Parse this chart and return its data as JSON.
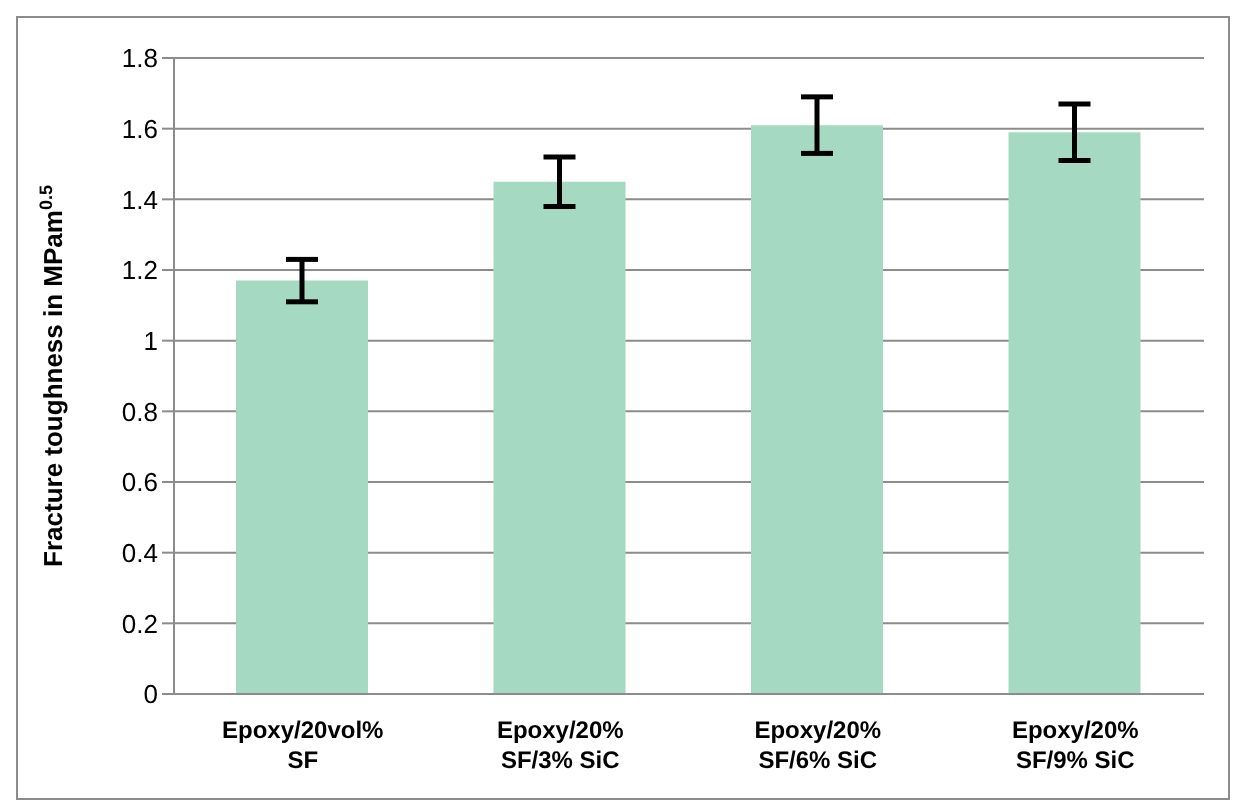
{
  "chart_data": {
    "type": "bar",
    "ylabel": "Fracture toughness in MPam$^{0.5}$",
    "categories": [
      "Epoxy/20vol% SF",
      "Epoxy/20% SF/3% SiC",
      "Epoxy/20% SF/6% SiC",
      "Epoxy/20% SF/9% SiC"
    ],
    "values": [
      1.17,
      1.45,
      1.61,
      1.59
    ],
    "errors": [
      0.06,
      0.07,
      0.08,
      0.08
    ],
    "color": "#a6d9c2",
    "ylim": [
      0,
      1.8
    ],
    "yticks": [
      0,
      0.2,
      0.4,
      0.6,
      0.8,
      1,
      1.2,
      1.4,
      1.6,
      1.8
    ],
    "grid": "y"
  }
}
